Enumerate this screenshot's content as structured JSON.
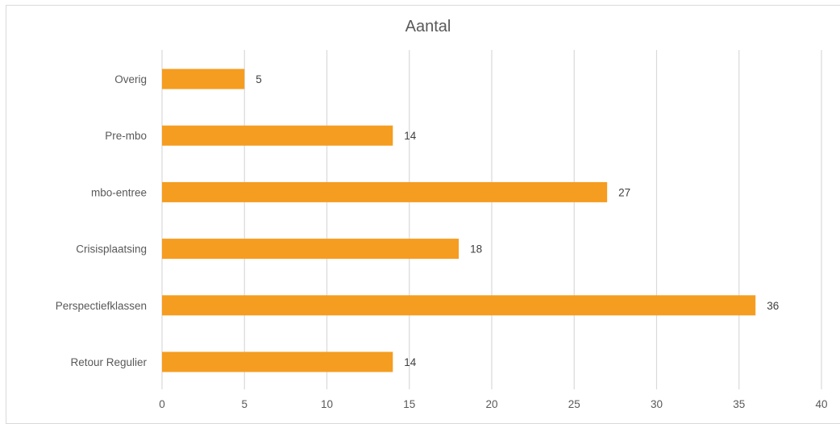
{
  "chart_data": {
    "type": "bar",
    "orientation": "horizontal",
    "title": "Aantal",
    "categories": [
      "Overig",
      "Pre-mbo",
      "mbo-entree",
      "Crisisplaatsing",
      "Perspectiefklassen",
      "Retour Regulier"
    ],
    "values": [
      5,
      14,
      27,
      18,
      36,
      14
    ],
    "xlabel": "",
    "ylabel": "",
    "xlim": [
      0,
      40
    ],
    "x_ticks": [
      "0",
      "5",
      "10",
      "15",
      "20",
      "25",
      "30",
      "35",
      "40"
    ],
    "grid": "vertical",
    "legend": "none",
    "bar_color": "#F59D20"
  }
}
